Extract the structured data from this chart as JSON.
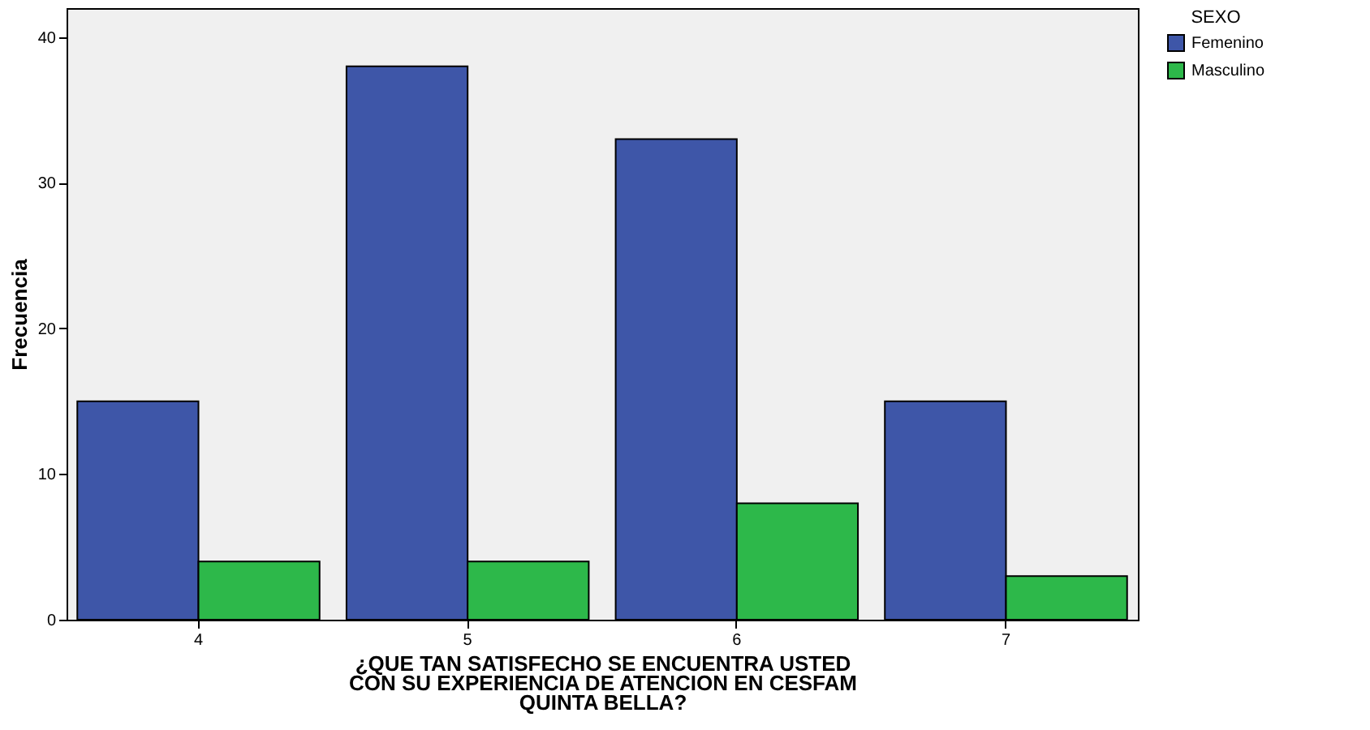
{
  "chart_data": {
    "type": "bar",
    "xlabel": "¿QUE TAN SATISFECHO SE ENCUENTRA USTED CON SU EXPERIENCIA DE ATENCION EN CESFAM QUINTA BELLA?",
    "ylabel": "Frecuencia",
    "legend_title": "SEXO",
    "categories": [
      "4",
      "5",
      "6",
      "7"
    ],
    "series": [
      {
        "name": "Femenino",
        "color": "#3e56a8",
        "values": [
          15,
          38,
          33,
          15
        ]
      },
      {
        "name": "Masculino",
        "color": "#2db84a",
        "values": [
          4,
          4,
          8,
          3
        ]
      }
    ],
    "ylim": [
      0,
      42
    ],
    "yticks": [
      0,
      10,
      20,
      30,
      40
    ],
    "grid": false,
    "legend": "top right"
  }
}
